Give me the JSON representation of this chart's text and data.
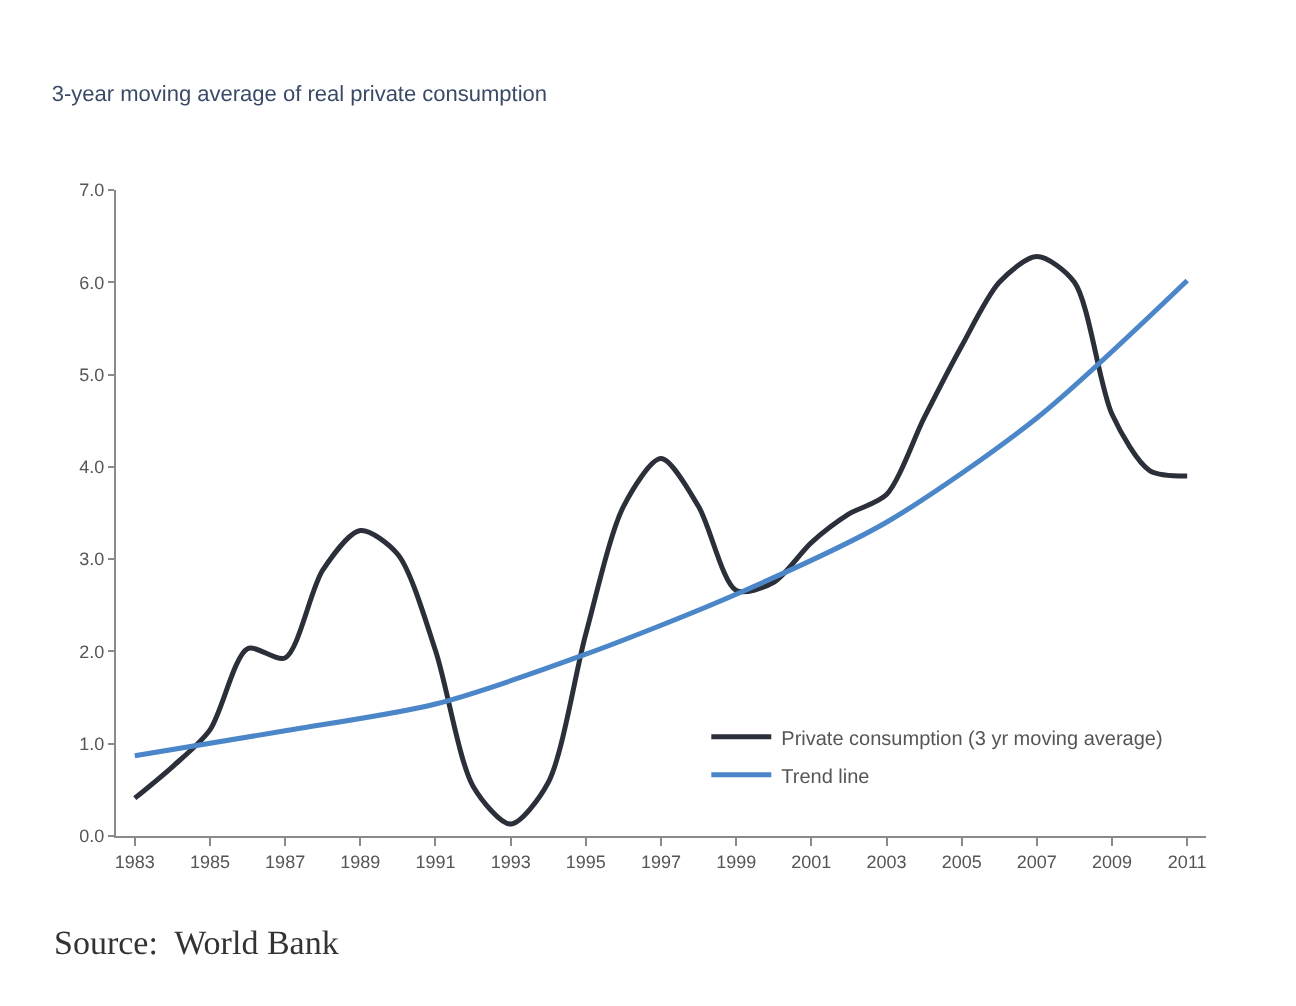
{
  "chart_data": {
    "type": "line",
    "title": "3-year moving average of real private consumption",
    "annotations": [
      "Source:  World Bank"
    ],
    "xlim": [
      1982.5,
      2011.5
    ],
    "xticks": [
      1983,
      1985,
      1987,
      1989,
      1991,
      1993,
      1995,
      1997,
      1999,
      2001,
      2003,
      2005,
      2007,
      2009,
      2011
    ],
    "ylim": [
      0,
      7
    ],
    "yticks": [
      {
        "value": 0,
        "label": "0.0"
      },
      {
        "value": 1,
        "label": "1.0"
      },
      {
        "value": 2,
        "label": "2.0"
      },
      {
        "value": 3,
        "label": "3.0"
      },
      {
        "value": 4,
        "label": "4.0"
      },
      {
        "value": 5,
        "label": "5.0"
      },
      {
        "value": 6,
        "label": "6.0"
      },
      {
        "value": 7,
        "label": "7.0"
      }
    ],
    "legend": "bottom right",
    "marker": "none",
    "line_style": "solid",
    "series": [
      {
        "name": "Private consumption (3 yr moving average)",
        "color": "#2b2f3a",
        "x": [
          1983,
          1984,
          1985,
          1986,
          1987,
          1988,
          1989,
          1990,
          1991,
          1992,
          1993,
          1994,
          1995,
          1996,
          1997,
          1998,
          1999,
          2000,
          2001,
          2002,
          2003,
          2004,
          2005,
          2006,
          2007,
          2008,
          2009,
          2010,
          2011
        ],
        "values": [
          0.41,
          0.75,
          1.15,
          2.03,
          1.93,
          2.88,
          3.31,
          3.05,
          2.01,
          0.54,
          0.13,
          0.58,
          2.19,
          3.57,
          4.09,
          3.57,
          2.66,
          2.75,
          3.18,
          3.49,
          3.7,
          4.53,
          5.31,
          6.0,
          6.28,
          6.0,
          4.57,
          3.96,
          3.9
        ]
      },
      {
        "name": "Trend line",
        "color": "#4a86c8",
        "x": [
          1983,
          1987,
          1991,
          1995,
          1999,
          2003,
          2007,
          2011
        ],
        "values": [
          0.87,
          1.14,
          1.43,
          1.97,
          2.62,
          3.4,
          4.53,
          6.02
        ]
      }
    ]
  }
}
